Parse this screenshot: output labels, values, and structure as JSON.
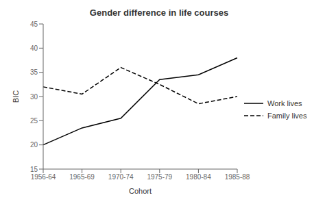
{
  "chart_data": {
    "type": "line",
    "title": "Gender difference in life courses",
    "xlabel": "Cohort",
    "ylabel": "BIC",
    "categories": [
      "1956-64",
      "1965-69",
      "1970-74",
      "1975-79",
      "1980-84",
      "1985-88"
    ],
    "series": [
      {
        "name": "Work lives",
        "color": "#000000",
        "line_style": "solid",
        "values": [
          20.0,
          23.5,
          25.5,
          33.5,
          34.5,
          38.0
        ]
      },
      {
        "name": "Family lives",
        "color": "#000000",
        "line_style": "dashed",
        "values": [
          32.0,
          30.5,
          36.0,
          32.5,
          28.5,
          30.0
        ]
      }
    ],
    "ylim": [
      15,
      45
    ],
    "yticks": [
      15,
      20,
      25,
      30,
      35,
      40,
      45
    ],
    "grid": false,
    "legend": "right"
  }
}
